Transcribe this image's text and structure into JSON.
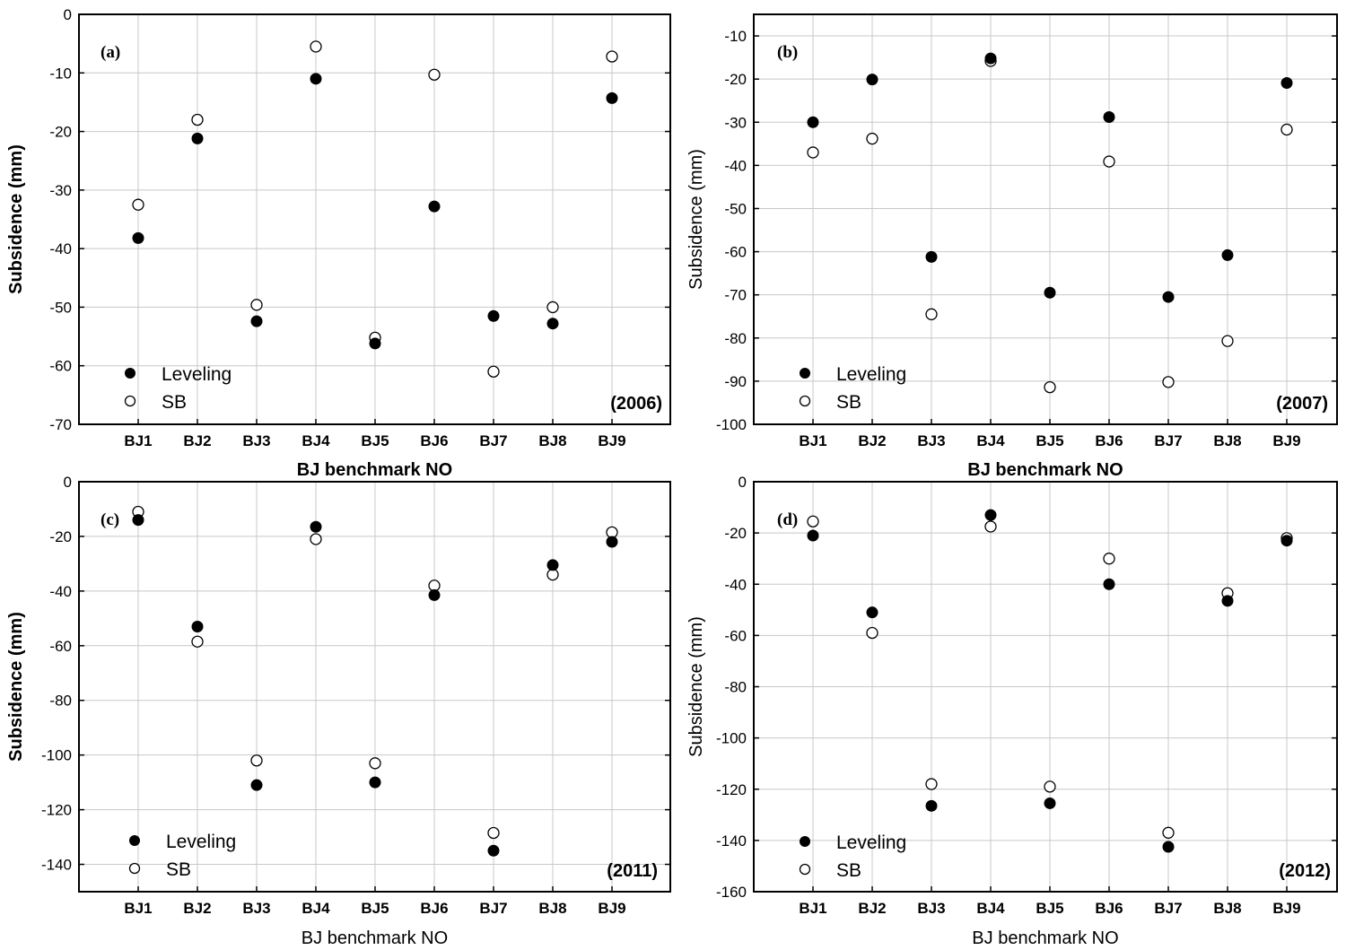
{
  "legend": {
    "leveling": "Leveling",
    "sb": "SB"
  },
  "chart_data": [
    {
      "type": "scatter",
      "panel_label": "(a)",
      "year_label": "(2006)",
      "xlabel": "BJ benchmark NO",
      "ylabel": "Subsidence (mm)",
      "categories": [
        "BJ1",
        "BJ2",
        "BJ3",
        "BJ4",
        "BJ5",
        "BJ6",
        "BJ7",
        "BJ8",
        "BJ9"
      ],
      "ylim": [
        -70,
        0
      ],
      "yticks": [
        0,
        -10,
        -20,
        -30,
        -40,
        -50,
        -60,
        -70
      ],
      "series": [
        {
          "name": "Leveling",
          "values": [
            -38.2,
            -21.2,
            -52.4,
            -11.0,
            -56.2,
            -32.8,
            -51.5,
            -52.8,
            -14.3
          ]
        },
        {
          "name": "SB",
          "values": [
            -32.5,
            -18.0,
            -49.6,
            -5.5,
            -55.2,
            -10.3,
            -61.0,
            -50.0,
            -7.2
          ]
        }
      ],
      "grid": true,
      "legend_position": "bottom-left"
    },
    {
      "type": "scatter",
      "panel_label": "(b)",
      "year_label": "(2007)",
      "xlabel": "BJ benchmark NO",
      "ylabel": "Subsidence (mm)",
      "categories": [
        "BJ1",
        "BJ2",
        "BJ3",
        "BJ4",
        "BJ5",
        "BJ6",
        "BJ7",
        "BJ8",
        "BJ9"
      ],
      "ylim": [
        -100,
        -5
      ],
      "yticks": [
        -10,
        -20,
        -30,
        -40,
        -50,
        -60,
        -70,
        -80,
        -90,
        -100
      ],
      "series": [
        {
          "name": "Leveling",
          "values": [
            -30.0,
            -20.1,
            -61.2,
            -15.2,
            -69.5,
            -28.8,
            -70.5,
            -60.8,
            -20.9
          ]
        },
        {
          "name": "SB",
          "values": [
            -37.0,
            -33.8,
            -74.5,
            -15.8,
            -91.4,
            -39.1,
            -90.2,
            -80.7,
            -31.7
          ]
        }
      ],
      "grid": true,
      "legend_position": "bottom-left"
    },
    {
      "type": "scatter",
      "panel_label": "(c)",
      "year_label": "(2011)",
      "xlabel": "BJ benchmark NO",
      "ylabel": "Subsidence (mm)",
      "categories": [
        "BJ1",
        "BJ2",
        "BJ3",
        "BJ4",
        "BJ5",
        "BJ6",
        "BJ7",
        "BJ8",
        "BJ9"
      ],
      "ylim": [
        -150,
        0
      ],
      "yticks": [
        0,
        -20,
        -40,
        -60,
        -80,
        -100,
        -120,
        -140
      ],
      "series": [
        {
          "name": "Leveling",
          "values": [
            -14.0,
            -53.0,
            -111.0,
            -16.5,
            -110.0,
            -41.5,
            -135.0,
            -30.5,
            -22.0
          ]
        },
        {
          "name": "SB",
          "values": [
            -11.0,
            -58.5,
            -102.0,
            -21.0,
            -103.0,
            -38.0,
            -128.5,
            -34.0,
            -18.5
          ]
        }
      ],
      "grid": true,
      "legend_position": "bottom-left"
    },
    {
      "type": "scatter",
      "panel_label": "(d)",
      "year_label": "(2012)",
      "xlabel": "BJ benchmark NO",
      "ylabel": "Subsidence (mm)",
      "categories": [
        "BJ1",
        "BJ2",
        "BJ3",
        "BJ4",
        "BJ5",
        "BJ6",
        "BJ7",
        "BJ8",
        "BJ9"
      ],
      "ylim": [
        -160,
        0
      ],
      "yticks": [
        0,
        -20,
        -40,
        -60,
        -80,
        -100,
        -120,
        -140,
        -160
      ],
      "series": [
        {
          "name": "Leveling",
          "values": [
            -21.0,
            -51.0,
            -126.5,
            -13.0,
            -125.5,
            -40.0,
            -142.5,
            -46.5,
            -23.0
          ]
        },
        {
          "name": "SB",
          "values": [
            -15.5,
            -59.0,
            -118.0,
            -17.5,
            -119.0,
            -30.0,
            -137.0,
            -43.5,
            -22.0
          ]
        }
      ],
      "grid": true,
      "legend_position": "bottom-left"
    }
  ]
}
